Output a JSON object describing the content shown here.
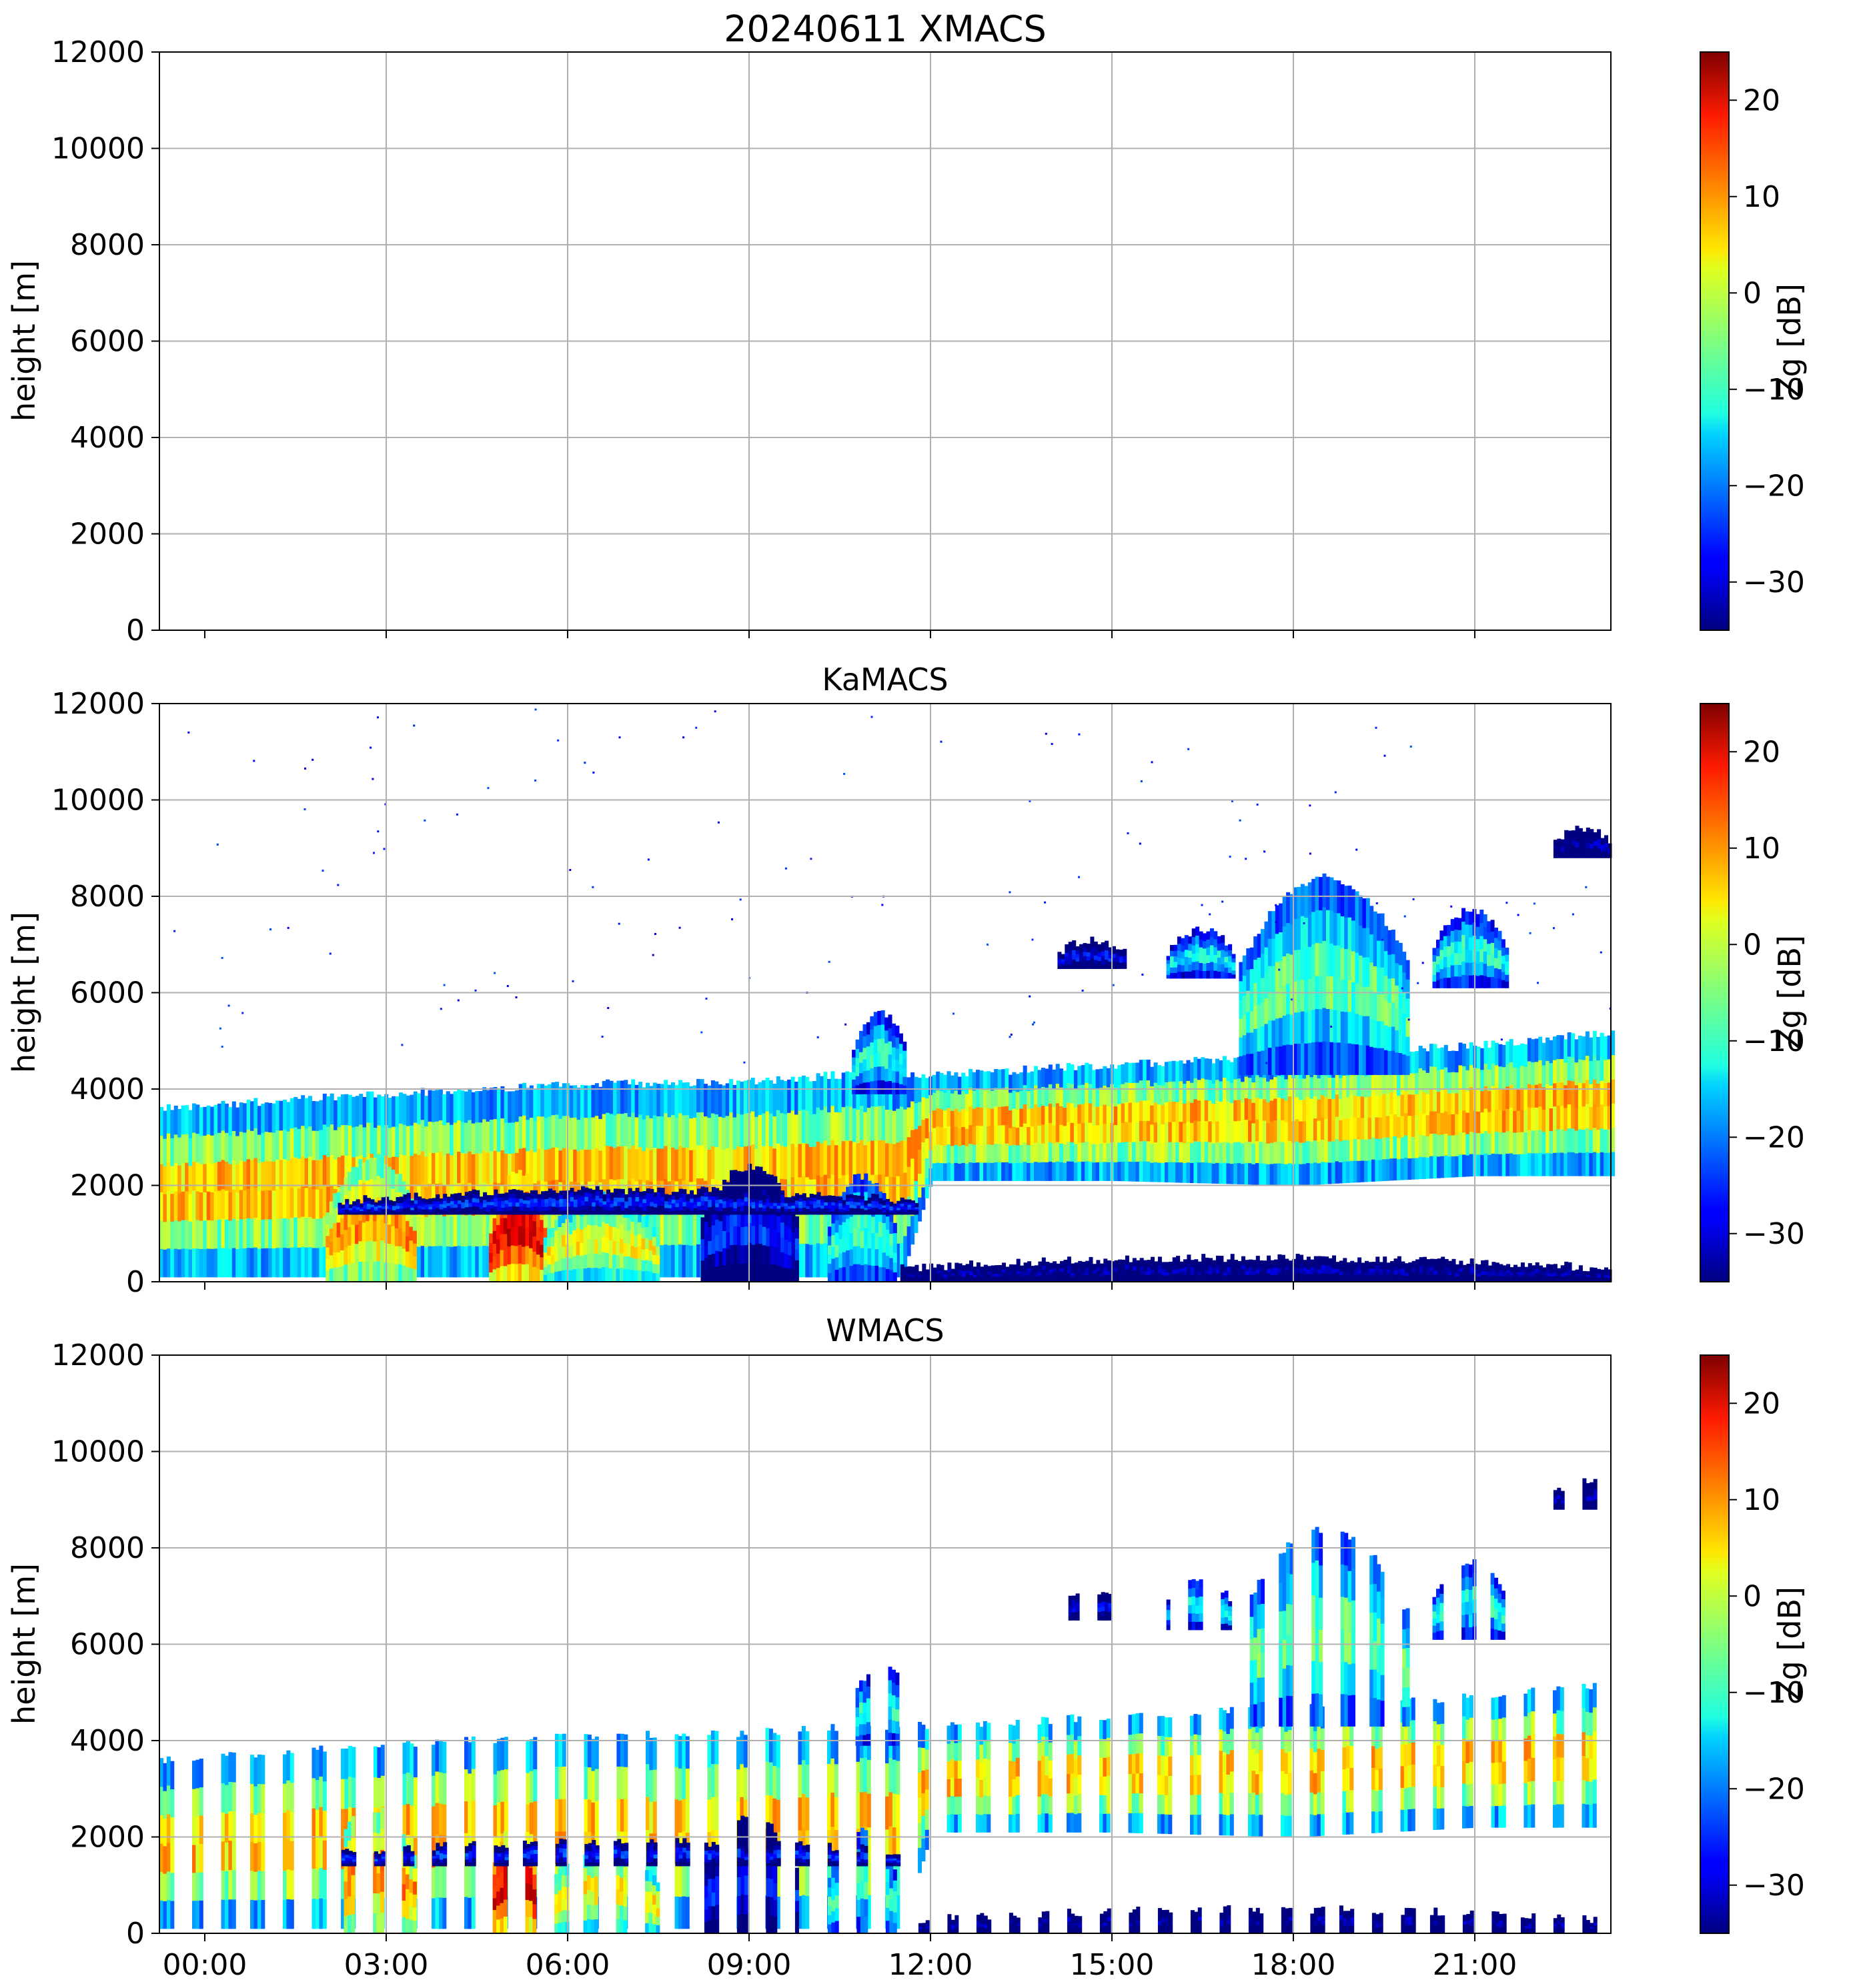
{
  "chart_data": [
    {
      "type": "heatmap",
      "title": "20240611 XMACS",
      "xlabel": "",
      "ylabel": "height [m]",
      "ylim": [
        0,
        12000
      ],
      "xlim_hours": [
        -0.75,
        23.25
      ],
      "yticks": [
        "0",
        "2000",
        "4000",
        "6000",
        "8000",
        "10000",
        "12000"
      ],
      "xticks": [],
      "grid": true,
      "colorbar": {
        "label": "Zg [dB]",
        "range": [
          -35,
          25
        ],
        "ticks": [
          "−30",
          "−20",
          "−10",
          "0",
          "10",
          "20"
        ],
        "colormap": "jet"
      },
      "data_present": false,
      "features": []
    },
    {
      "type": "heatmap",
      "title": "KaMACS",
      "xlabel": "",
      "ylabel": "height [m]",
      "ylim": [
        0,
        12000
      ],
      "xlim_hours": [
        -0.75,
        23.25
      ],
      "yticks": [
        "0",
        "2000",
        "4000",
        "6000",
        "8000",
        "10000",
        "12000"
      ],
      "xticks": [],
      "grid": true,
      "colorbar": {
        "label": "Zg [dB]",
        "range": [
          -35,
          25
        ],
        "ticks": [
          "−30",
          "−20",
          "−10",
          "0",
          "10",
          "20"
        ],
        "colormap": "jet"
      },
      "data_present": true,
      "features": [
        {
          "name": "boundary-layer-cloud",
          "start_h": -0.75,
          "end_h": 23.25,
          "top_m": [
            [
              -0.75,
              3600
            ],
            [
              3,
              3900
            ],
            [
              6,
              4100
            ],
            [
              9,
              4150
            ],
            [
              10.5,
              4300
            ],
            [
              12,
              4300
            ],
            [
              15,
              4500
            ],
            [
              18,
              4700
            ],
            [
              21,
              4900
            ],
            [
              23.25,
              5200
            ]
          ],
          "base_m": [
            [
              -0.75,
              100
            ],
            [
              11.5,
              100
            ],
            [
              12,
              2100
            ],
            [
              15,
              2100
            ],
            [
              18,
              2000
            ],
            [
              21,
              2200
            ],
            [
              23.25,
              2200
            ]
          ],
          "core_dbz": 10
        },
        {
          "name": "convective-tower",
          "start_h": 10.7,
          "end_h": 11.6,
          "bottom_m": 3900,
          "top_m": 5600,
          "core_dbz": -8
        },
        {
          "name": "anvil-cloud",
          "start_h": 17.1,
          "end_h": 19.9,
          "bottom_m": 4300,
          "top_m": 8400,
          "core_dbz": -4
        },
        {
          "name": "cirrus-patch",
          "start_h": 15.9,
          "end_h": 17.0,
          "bottom_m": 6300,
          "top_m": 7300,
          "core_dbz": -10
        },
        {
          "name": "cirrus-patch",
          "start_h": 20.3,
          "end_h": 21.5,
          "bottom_m": 6100,
          "top_m": 7700,
          "core_dbz": -8
        },
        {
          "name": "cirrus-patch",
          "start_h": 14.1,
          "end_h": 15.2,
          "bottom_m": 6500,
          "top_m": 7100,
          "core_dbz": -25
        },
        {
          "name": "high-cirrus",
          "start_h": 22.3,
          "end_h": 23.25,
          "bottom_m": 8800,
          "top_m": 9400,
          "core_dbz": -30
        },
        {
          "name": "rain-shaft",
          "start_h": 2.0,
          "end_h": 3.5,
          "bottom_m": 0,
          "top_m": 2600,
          "core_dbz": 12
        },
        {
          "name": "rain-shaft",
          "start_h": 4.7,
          "end_h": 5.6,
          "bottom_m": 0,
          "top_m": 2300,
          "core_dbz": 22
        },
        {
          "name": "rain-shaft",
          "start_h": 5.6,
          "end_h": 7.5,
          "bottom_m": 0,
          "top_m": 1800,
          "core_dbz": 6
        },
        {
          "name": "rain-shaft",
          "start_h": 8.2,
          "end_h": 9.8,
          "bottom_m": 0,
          "top_m": 2400,
          "core_dbz": -22
        },
        {
          "name": "rain-shaft",
          "start_h": 10.3,
          "end_h": 11.4,
          "bottom_m": 0,
          "top_m": 2200,
          "core_dbz": -6
        },
        {
          "name": "melting-layer-band",
          "start_h": 2.2,
          "end_h": 11.8,
          "bottom_m": 1400,
          "top_m": 1900,
          "core_dbz": -22
        },
        {
          "name": "ground-clutter",
          "start_h": 11.5,
          "end_h": 23.25,
          "bottom_m": 0,
          "top_m": 500,
          "core_dbz": -30
        }
      ]
    },
    {
      "type": "heatmap",
      "title": "WMACS",
      "xlabel": "",
      "ylabel": "height [m]",
      "ylim": [
        0,
        12000
      ],
      "xlim_hours": [
        -0.75,
        23.25
      ],
      "yticks": [
        "0",
        "2000",
        "4000",
        "6000",
        "8000",
        "10000",
        "12000"
      ],
      "xticks": [
        "00:00",
        "03:00",
        "06:00",
        "09:00",
        "12:00",
        "15:00",
        "18:00",
        "21:00"
      ],
      "grid": true,
      "colorbar": {
        "label": "Zg [dB]",
        "range": [
          -35,
          25
        ],
        "ticks": [
          "−30",
          "−20",
          "−10",
          "0",
          "10",
          "20"
        ],
        "colormap": "jet"
      },
      "data_present": true,
      "stripe_period_h": 0.5,
      "stripe_duty": 0.42,
      "features": "same scene as KaMACS sampled in periodic vertical stripes"
    }
  ]
}
